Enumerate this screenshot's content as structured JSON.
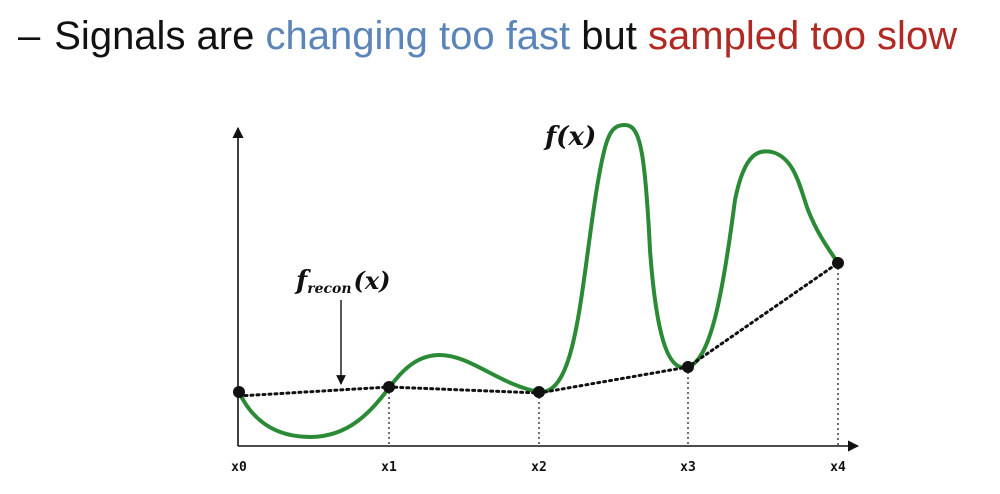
{
  "heading": {
    "dash": "–",
    "part1": "Signals are",
    "part2": "changing too fast",
    "part3": "but",
    "part4": "sampled too slow"
  },
  "colors": {
    "accent_blue": "#5b84b8",
    "accent_red": "#b02a23",
    "signal_green": "#2a8a35",
    "text": "#111111"
  },
  "figure": {
    "f_label": "f(x)",
    "recon_label_f": "f",
    "recon_label_sub": "recon",
    "recon_label_arg": "(x)",
    "ticks": [
      "x0",
      "x1",
      "x2",
      "x3",
      "x4"
    ]
  }
}
